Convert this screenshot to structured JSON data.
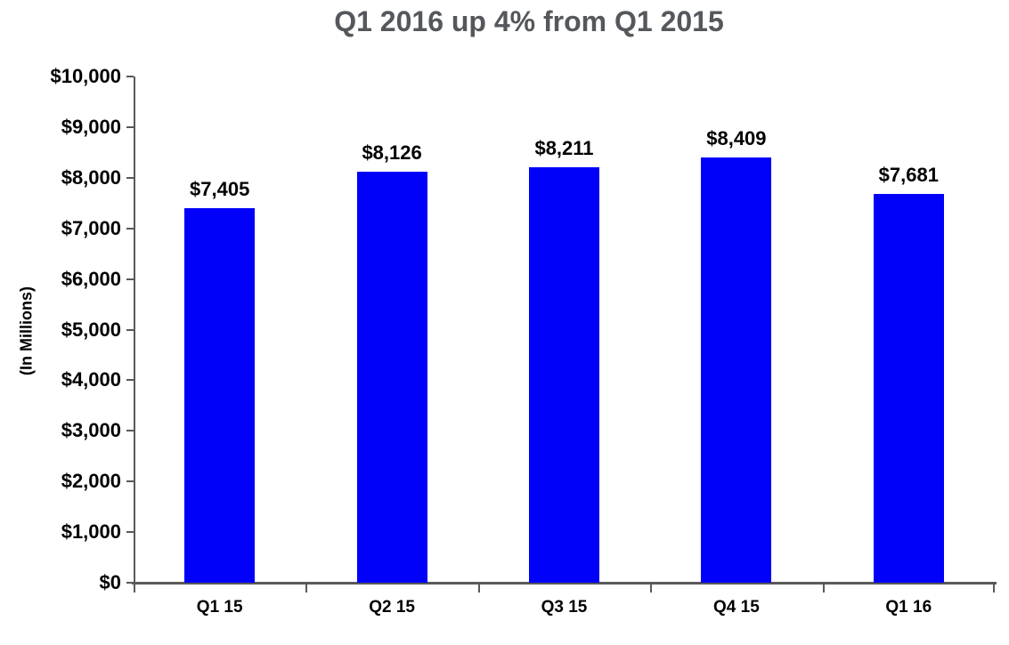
{
  "chart_data": {
    "type": "bar",
    "title": "Q1 2016 up 4% from Q1 2015",
    "xlabel": "",
    "ylabel": "(In Millions)",
    "categories": [
      "Q1 15",
      "Q2 15",
      "Q3 15",
      "Q4 15",
      "Q1 16"
    ],
    "values": [
      7405,
      8126,
      8211,
      8409,
      7681
    ],
    "value_labels": [
      "$7,405",
      "$8,126",
      "$8,211",
      "$8,409",
      "$7,681"
    ],
    "ylim": [
      0,
      10000
    ],
    "ytick_interval": 1000,
    "ytick_labels": [
      "$0",
      "$1,000",
      "$2,000",
      "$3,000",
      "$4,000",
      "$5,000",
      "$6,000",
      "$7,000",
      "$8,000",
      "$9,000",
      "$10,000"
    ],
    "grid": false,
    "legend": "none",
    "colors": {
      "bar": "#0101FA",
      "axis": "#595959",
      "title_text": "#54585C",
      "label_text": "#000000",
      "background": "#FFFFFF"
    }
  }
}
